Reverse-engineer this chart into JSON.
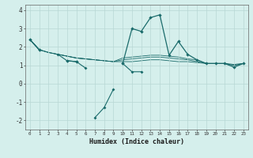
{
  "xlabel": "Humidex (Indice chaleur)",
  "x_values": [
    0,
    1,
    2,
    3,
    4,
    5,
    6,
    7,
    8,
    9,
    10,
    11,
    12,
    13,
    14,
    15,
    16,
    17,
    18,
    19,
    20,
    21,
    22,
    23
  ],
  "line1_zigzag": [
    2.4,
    1.85,
    null,
    1.6,
    1.25,
    1.2,
    0.85,
    null,
    null,
    null,
    1.1,
    0.65,
    0.65,
    null,
    null,
    null,
    null,
    null,
    null,
    null,
    null,
    null,
    null,
    null
  ],
  "line2_dip": [
    null,
    null,
    null,
    null,
    null,
    null,
    null,
    -1.85,
    -1.3,
    -0.3,
    null,
    null,
    null,
    null,
    null,
    null,
    null,
    null,
    null,
    null,
    null,
    null,
    null,
    null
  ],
  "line3_flat": [
    2.4,
    1.85,
    1.7,
    1.6,
    1.5,
    1.4,
    1.35,
    1.3,
    1.25,
    1.2,
    1.2,
    1.2,
    1.25,
    1.3,
    1.3,
    1.25,
    1.2,
    1.2,
    1.15,
    1.1,
    1.1,
    1.1,
    1.05,
    1.1
  ],
  "line4_flat": [
    2.4,
    1.85,
    1.7,
    1.6,
    1.5,
    1.4,
    1.35,
    1.3,
    1.25,
    1.2,
    1.3,
    1.35,
    1.4,
    1.45,
    1.45,
    1.4,
    1.35,
    1.3,
    1.2,
    1.1,
    1.1,
    1.1,
    1.0,
    1.1
  ],
  "line5_flat": [
    2.4,
    1.85,
    1.7,
    1.6,
    1.5,
    1.4,
    1.35,
    1.3,
    1.25,
    1.2,
    1.4,
    1.45,
    1.5,
    1.55,
    1.55,
    1.5,
    1.45,
    1.35,
    1.3,
    1.1,
    1.1,
    1.1,
    1.0,
    1.1
  ],
  "main_line": [
    2.4,
    1.85,
    null,
    null,
    1.25,
    1.2,
    null,
    null,
    null,
    null,
    1.1,
    3.0,
    2.85,
    3.6,
    3.75,
    1.55,
    2.3,
    1.6,
    1.3,
    1.1,
    1.1,
    1.1,
    0.9,
    1.1
  ],
  "bg_color": "#d5efec",
  "line_color": "#1a6b6b",
  "grid_color": "#b8d8d5",
  "ylim": [
    -2.5,
    4.3
  ],
  "xlim": [
    -0.5,
    23.5
  ]
}
